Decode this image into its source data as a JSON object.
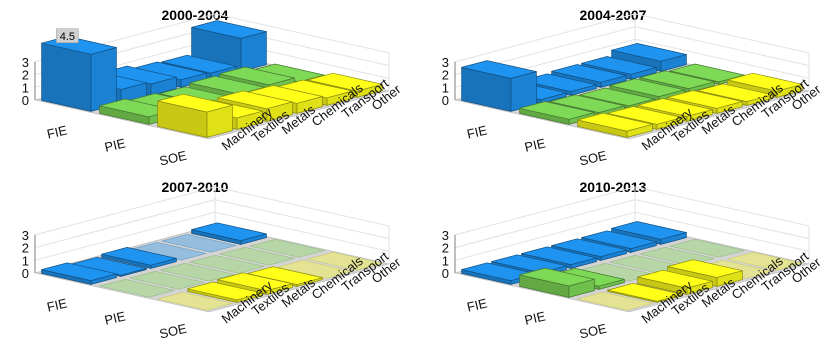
{
  "colors": {
    "FIE": "#1f93f0",
    "PIE": "#7ed957",
    "SOE": "#ffff1a",
    "floor": "#d4d4d4",
    "grid": "#e2e2e2",
    "label_box": "#d0d0d0"
  },
  "chart_data": [
    {
      "type": "bar3d",
      "title": "2000-2004",
      "row_labels": [
        "FIE",
        "PIE",
        "SOE"
      ],
      "col_labels": [
        "Machinery",
        "Textiles",
        "Metals",
        "Chemicals",
        "Transport",
        "Other"
      ],
      "zticks": [
        "0",
        "1",
        "2",
        "3"
      ],
      "zlim": [
        0,
        3
      ],
      "values": [
        [
          4.5,
          1.1,
          0.9,
          0.6,
          0.5,
          2.6
        ],
        [
          0.6,
          0.4,
          0.3,
          0.5,
          0.6,
          0.2
        ],
        [
          2.0,
          0.9,
          1.0,
          0.8,
          0.6,
          0.5
        ]
      ],
      "data_label": {
        "row": 0,
        "col": 0,
        "text": "4.5"
      }
    },
    {
      "type": "bar3d",
      "title": "2004-2007",
      "row_labels": [
        "FIE",
        "PIE",
        "SOE"
      ],
      "col_labels": [
        "Machinery",
        "Textiles",
        "Metals",
        "Chemicals",
        "Transport",
        "Other"
      ],
      "zticks": [
        "0",
        "1",
        "2",
        "3"
      ],
      "zlim": [
        0,
        3
      ],
      "values": [
        [
          2.6,
          0.3,
          0.3,
          0.4,
          0.4,
          0.8
        ],
        [
          0.4,
          0.3,
          0.2,
          0.3,
          0.3,
          0.2
        ],
        [
          0.5,
          0.4,
          0.4,
          0.4,
          0.3,
          0.5
        ]
      ]
    },
    {
      "type": "bar3d",
      "title": "2007-2010",
      "row_labels": [
        "FIE",
        "PIE",
        "SOE"
      ],
      "col_labels": [
        "Machinery",
        "Textiles",
        "Metals",
        "Chemicals",
        "Transport",
        "Other"
      ],
      "zticks": [
        "0",
        "1",
        "2",
        "3"
      ],
      "zlim": [
        0,
        3
      ],
      "values": [
        [
          0.3,
          0.1,
          0.25,
          0.05,
          0.05,
          0.3
        ],
        [
          0.05,
          0.05,
          0.05,
          0.05,
          0.05,
          0.05
        ],
        [
          0.05,
          0.2,
          0.3,
          0.15,
          0.05,
          0.05
        ]
      ]
    },
    {
      "type": "bar3d",
      "title": "2010-2013",
      "row_labels": [
        "FIE",
        "PIE",
        "SOE"
      ],
      "col_labels": [
        "Machinery",
        "Textiles",
        "Metals",
        "Chemicals",
        "Transport",
        "Other"
      ],
      "zticks": [
        "0",
        "1",
        "2",
        "3"
      ],
      "zlim": [
        0,
        3
      ],
      "values": [
        [
          0.3,
          0.3,
          0.3,
          0.3,
          0.3,
          0.4
        ],
        [
          0.9,
          0.25,
          0.05,
          0.05,
          0.05,
          0.05
        ],
        [
          0.05,
          0.1,
          0.5,
          0.7,
          0.05,
          0.05
        ]
      ]
    }
  ]
}
